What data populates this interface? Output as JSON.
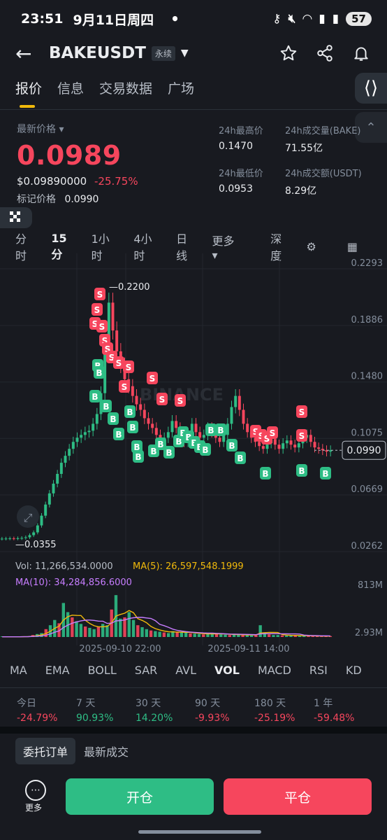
{
  "status_bar": {
    "time": "23:51",
    "date": "9月11日周四",
    "dot": "•",
    "battery": "57"
  },
  "header": {
    "symbol": "BAKEUSDT",
    "badge": "永续"
  },
  "tabs": [
    "报价",
    "信息",
    "交易数据",
    "广场"
  ],
  "price": {
    "latest_label": "最新价格",
    "last": "0.0989",
    "usd": "$0.09890000",
    "change": "-25.75%",
    "mark_label": "标记价格",
    "mark": "0.0990"
  },
  "stats": {
    "high_label": "24h最高价",
    "high": "0.1470",
    "vol_label": "24h成交量(BAKE)",
    "vol": "71.55亿",
    "low_label": "24h最低价",
    "low": "0.0953",
    "turnover_label": "24h成交额(USDT)",
    "turnover": "8.29亿"
  },
  "intervals": [
    "分时",
    "15分",
    "1小时",
    "4小时",
    "日线",
    "更多"
  ],
  "interval_selected": "15分",
  "depth_label": "深度",
  "chart_data": {
    "type": "candlestick",
    "y_axis_ticks": [
      "0.2293",
      "0.1886",
      "0.1480",
      "0.1075",
      "0.0669",
      "0.0262"
    ],
    "ylim": [
      0.0262,
      0.2293
    ],
    "current_price_label": "0.0990",
    "high_marker": "0.2200",
    "low_marker": "0.0355",
    "watermark": "BINANCE",
    "x_labels": [
      "2025-09-10 22:00",
      "2025-09-11 14:00"
    ],
    "close_series": [
      0.0355,
      0.0356,
      0.0357,
      0.0356,
      0.0358,
      0.036,
      0.0365,
      0.038,
      0.04,
      0.045,
      0.052,
      0.06,
      0.068,
      0.075,
      0.082,
      0.09,
      0.095,
      0.1,
      0.105,
      0.108,
      0.11,
      0.112,
      0.113,
      0.118,
      0.125,
      0.14,
      0.175,
      0.205,
      0.185,
      0.17,
      0.16,
      0.15,
      0.145,
      0.138,
      0.132,
      0.128,
      0.122,
      0.118,
      0.115,
      0.11,
      0.105,
      0.108,
      0.112,
      0.12,
      0.115,
      0.108,
      0.105,
      0.11,
      0.118,
      0.112,
      0.108,
      0.11,
      0.115,
      0.112,
      0.108,
      0.105,
      0.11,
      0.118,
      0.13,
      0.138,
      0.128,
      0.118,
      0.112,
      0.108,
      0.105,
      0.102,
      0.1,
      0.104,
      0.107,
      0.103,
      0.1,
      0.104,
      0.106,
      0.103,
      0.101,
      0.104,
      0.108,
      0.11,
      0.105,
      0.101,
      0.1,
      0.099,
      0.098,
      0.099
    ],
    "trade_markers": {
      "sell_label": "S",
      "buy_label": "B",
      "sell": [
        [
          143,
          420
        ],
        [
          139,
          442
        ],
        [
          136,
          462
        ],
        [
          146,
          466
        ],
        [
          150,
          486
        ],
        [
          154,
          498
        ],
        [
          160,
          510
        ],
        [
          170,
          518
        ],
        [
          184,
          524
        ],
        [
          178,
          552
        ],
        [
          218,
          540
        ],
        [
          232,
          570
        ],
        [
          258,
          572
        ],
        [
          366,
          616
        ],
        [
          374,
          622
        ],
        [
          382,
          626
        ],
        [
          390,
          618
        ],
        [
          432,
          588
        ],
        [
          432,
          622
        ]
      ],
      "buy": [
        [
          140,
          522
        ],
        [
          142,
          532
        ],
        [
          136,
          566
        ],
        [
          152,
          580
        ],
        [
          162,
          598
        ],
        [
          186,
          588
        ],
        [
          170,
          620
        ],
        [
          190,
          610
        ],
        [
          196,
          638
        ],
        [
          198,
          652
        ],
        [
          220,
          644
        ],
        [
          230,
          634
        ],
        [
          242,
          646
        ],
        [
          256,
          630
        ],
        [
          262,
          618
        ],
        [
          270,
          624
        ],
        [
          278,
          632
        ],
        [
          286,
          638
        ],
        [
          294,
          642
        ],
        [
          302,
          614
        ],
        [
          316,
          614
        ],
        [
          332,
          636
        ],
        [
          344,
          654
        ],
        [
          380,
          676
        ],
        [
          432,
          672
        ],
        [
          466,
          676
        ]
      ]
    },
    "volume": {
      "vol_label": "Vol:",
      "vol": "11,266,534.0000",
      "ma5_label": "MA(5):",
      "ma5": "26,597,548.1999",
      "ma10_label": "MA(10):",
      "ma10": "34,284,856.6000",
      "y_ticks": [
        "813M",
        "2.93M"
      ],
      "bars_millions": [
        3,
        3,
        3,
        4,
        5,
        8,
        12,
        30,
        45,
        60,
        120,
        180,
        260,
        210,
        520,
        380,
        300,
        240,
        200,
        160,
        140,
        120,
        160,
        200,
        180,
        420,
        640,
        280,
        300,
        380,
        260,
        180,
        150,
        120,
        100,
        90,
        80,
        70,
        60,
        90,
        75,
        70,
        65,
        55,
        50,
        45,
        40,
        45,
        60,
        50,
        40,
        35,
        30,
        40,
        35,
        30,
        28,
        25,
        40,
        180,
        60,
        40,
        30,
        30,
        25,
        20,
        22,
        25,
        20,
        18,
        16,
        15,
        14,
        12,
        15,
        14
      ]
    }
  },
  "indicator_tabs": [
    "MA",
    "EMA",
    "BOLL",
    "SAR",
    "AVL",
    "VOL",
    "MACD",
    "RSI",
    "KD"
  ],
  "indicator_selected": "VOL",
  "performance": [
    {
      "label": "今日",
      "value": "-24.79%",
      "dir": "down"
    },
    {
      "label": "7 天",
      "value": "90.93%",
      "dir": "up"
    },
    {
      "label": "30 天",
      "value": "14.20%",
      "dir": "up"
    },
    {
      "label": "90 天",
      "value": "-9.93%",
      "dir": "down"
    },
    {
      "label": "180 天",
      "value": "-25.19%",
      "dir": "down"
    },
    {
      "label": "1 年",
      "value": "-59.48%",
      "dir": "down"
    }
  ],
  "order_tabs": {
    "entrust": "委托订单",
    "latest": "最新成交"
  },
  "bottom": {
    "more": "更多",
    "open": "开仓",
    "close": "平仓"
  },
  "colors": {
    "up": "#2ebd85",
    "down": "#f6465d",
    "accent": "#f0b90b",
    "bg": "#181a20"
  }
}
